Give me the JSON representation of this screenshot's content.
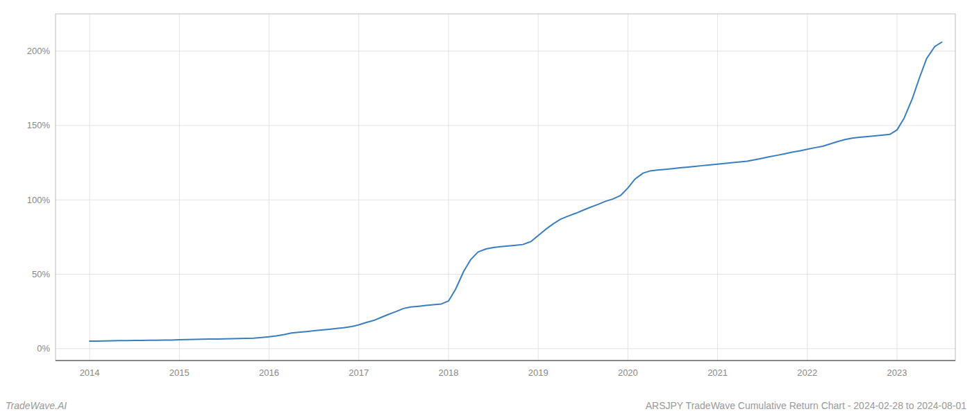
{
  "chart_data": {
    "type": "line",
    "title": "ARSJPY TradeWave Cumulative Return Chart - 2024-02-28 to 2024-08-01",
    "annotations": [
      "TradeWave.AI"
    ],
    "color": "#3a7ebf",
    "grid": true,
    "x": [
      2014.0,
      2014.08,
      2014.17,
      2014.25,
      2014.33,
      2014.42,
      2014.5,
      2014.58,
      2014.67,
      2014.75,
      2014.83,
      2014.92,
      2015.0,
      2015.08,
      2015.17,
      2015.25,
      2015.33,
      2015.42,
      2015.5,
      2015.58,
      2015.67,
      2015.75,
      2015.83,
      2015.92,
      2016.0,
      2016.08,
      2016.17,
      2016.25,
      2016.33,
      2016.42,
      2016.5,
      2016.58,
      2016.67,
      2016.75,
      2016.83,
      2016.92,
      2017.0,
      2017.08,
      2017.17,
      2017.25,
      2017.33,
      2017.42,
      2017.5,
      2017.58,
      2017.67,
      2017.75,
      2017.83,
      2017.92,
      2018.0,
      2018.08,
      2018.17,
      2018.25,
      2018.33,
      2018.42,
      2018.5,
      2018.58,
      2018.67,
      2018.75,
      2018.83,
      2018.92,
      2019.0,
      2019.08,
      2019.17,
      2019.25,
      2019.33,
      2019.42,
      2019.5,
      2019.58,
      2019.67,
      2019.75,
      2019.83,
      2019.92,
      2020.0,
      2020.08,
      2020.17,
      2020.25,
      2020.33,
      2020.42,
      2020.5,
      2020.58,
      2020.67,
      2020.75,
      2020.83,
      2020.92,
      2021.0,
      2021.08,
      2021.17,
      2021.25,
      2021.33,
      2021.42,
      2021.5,
      2021.58,
      2021.67,
      2021.75,
      2021.83,
      2021.92,
      2022.0,
      2022.08,
      2022.17,
      2022.25,
      2022.33,
      2022.42,
      2022.5,
      2022.58,
      2022.67,
      2022.75,
      2022.83,
      2022.92,
      2023.0,
      2023.08,
      2023.17,
      2023.25,
      2023.33,
      2023.42,
      2023.5
    ],
    "values": [
      5.0,
      5.1,
      5.2,
      5.3,
      5.4,
      5.4,
      5.5,
      5.5,
      5.6,
      5.6,
      5.7,
      5.8,
      6.0,
      6.1,
      6.2,
      6.3,
      6.4,
      6.5,
      6.6,
      6.7,
      6.8,
      6.9,
      7.0,
      7.5,
      8.0,
      8.5,
      9.5,
      10.5,
      11.0,
      11.5,
      12.0,
      12.5,
      13.0,
      13.5,
      14.0,
      14.8,
      16.0,
      17.5,
      19.0,
      21.0,
      23.0,
      25.0,
      27.0,
      28.0,
      28.5,
      29.0,
      29.5,
      30.0,
      32.0,
      40.0,
      52.0,
      60.0,
      65.0,
      67.0,
      68.0,
      68.5,
      69.0,
      69.5,
      70.0,
      72.0,
      76.0,
      80.0,
      84.0,
      87.0,
      89.0,
      91.0,
      93.0,
      95.0,
      97.0,
      99.0,
      100.5,
      103.0,
      108.0,
      114.0,
      118.0,
      119.5,
      120.0,
      120.5,
      121.0,
      121.5,
      122.0,
      122.5,
      123.0,
      123.5,
      124.0,
      124.5,
      125.0,
      125.5,
      126.0,
      127.0,
      128.0,
      129.0,
      130.0,
      131.0,
      132.0,
      133.0,
      134.0,
      135.0,
      136.0,
      137.5,
      139.0,
      140.5,
      141.5,
      142.0,
      142.5,
      143.0,
      143.5,
      144.0,
      147.0,
      155.0,
      168.0,
      182.0,
      195.0,
      203.0,
      206.0
    ],
    "xlim": [
      2013.62,
      2023.65
    ],
    "xticks": [
      2014,
      2015,
      2016,
      2017,
      2018,
      2019,
      2020,
      2021,
      2022,
      2023
    ],
    "ylim": [
      -8,
      225
    ],
    "yticks": [
      {
        "value": 0,
        "label": "0%"
      },
      {
        "value": 50,
        "label": "50%"
      },
      {
        "value": 100,
        "label": "100%"
      },
      {
        "value": 150,
        "label": "150%"
      },
      {
        "value": 200,
        "label": "200%"
      }
    ]
  }
}
